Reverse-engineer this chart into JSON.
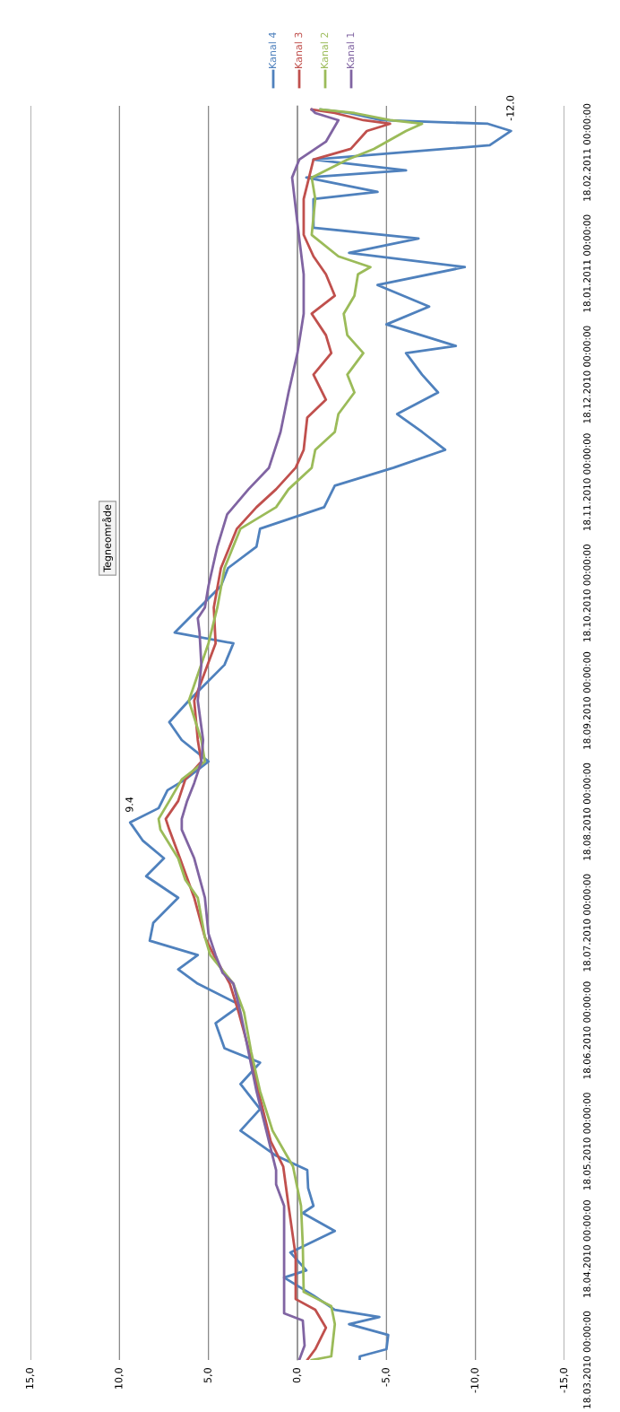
{
  "chart_data": {
    "type": "line",
    "orientation": "horizontal",
    "ylim": [
      "2010-03-18",
      "2011-03-03"
    ],
    "yticks": [
      {
        "value": "2010-03-18",
        "label": "18.03.2010 00:00:00"
      },
      {
        "value": "2010-04-18",
        "label": "18.04.2010 00:00:00"
      },
      {
        "value": "2010-05-18",
        "label": "18.05.2010 00:00:00"
      },
      {
        "value": "2010-06-18",
        "label": "18.06.2010 00:00:00"
      },
      {
        "value": "2010-07-18",
        "label": "18.07.2010 00:00:00"
      },
      {
        "value": "2010-08-18",
        "label": "18.08.2010 00:00:00"
      },
      {
        "value": "2010-09-18",
        "label": "18.09.2010 00:00:00"
      },
      {
        "value": "2010-10-18",
        "label": "18.10.2010 00:00:00"
      },
      {
        "value": "2010-11-18",
        "label": "18.11.2010 00:00:00"
      },
      {
        "value": "2010-12-18",
        "label": "18.12.2010 00:00:00"
      },
      {
        "value": "2011-01-18",
        "label": "18.01.2011 00:00:00"
      },
      {
        "value": "2011-02-18",
        "label": "18.02.2011 00:00:00"
      }
    ],
    "xlim": [
      15,
      -15
    ],
    "xticks": [
      {
        "value": -15,
        "label": "-15,0"
      },
      {
        "value": -10,
        "label": "-10,0"
      },
      {
        "value": -5,
        "label": "-5,0"
      },
      {
        "value": 0,
        "label": "0,0"
      },
      {
        "value": 5,
        "label": "5,0"
      },
      {
        "value": 10,
        "label": "10,0"
      },
      {
        "value": 15,
        "label": "15,0"
      }
    ],
    "grid": "x",
    "legend": "right",
    "marker": "none",
    "line_style": "solid",
    "annotations": [
      {
        "text": "9.4",
        "y": "2010-08-15",
        "x": 9.4
      },
      {
        "text": "-12.0",
        "y": "2011-02-24",
        "x": -12.0
      },
      "Tegneområde"
    ],
    "series": [
      {
        "name": "Kanal 4",
        "color": "#4f81bd",
        "x": [
          "2010-03-18",
          "2010-03-19",
          "2010-03-21",
          "2010-03-25",
          "2010-03-28",
          "2010-03-30",
          "2010-04-01",
          "2010-04-05",
          "2010-04-10",
          "2010-04-12",
          "2010-04-17",
          "2010-04-23",
          "2010-04-28",
          "2010-04-30",
          "2010-05-05",
          "2010-05-10",
          "2010-05-14",
          "2010-05-21",
          "2010-05-27",
          "2010-06-03",
          "2010-06-09",
          "2010-06-13",
          "2010-06-20",
          "2010-06-25",
          "2010-07-01",
          "2010-07-05",
          "2010-07-09",
          "2010-07-13",
          "2010-07-18",
          "2010-07-25",
          "2010-07-31",
          "2010-08-05",
          "2010-08-10",
          "2010-08-15",
          "2010-08-19",
          "2010-08-24",
          "2010-08-27",
          "2010-09-01",
          "2010-09-07",
          "2010-09-12",
          "2010-09-18",
          "2010-09-28",
          "2010-10-04",
          "2010-10-07",
          "2010-10-11",
          "2010-10-20",
          "2010-10-25",
          "2010-10-31",
          "2010-11-05",
          "2010-11-11",
          "2010-11-17",
          "2010-11-22",
          "2010-11-27",
          "2010-12-02",
          "2010-12-07",
          "2010-12-13",
          "2010-12-18",
          "2010-12-24",
          "2010-12-26",
          "2011-01-01",
          "2011-01-06",
          "2011-01-12",
          "2011-01-17",
          "2011-01-21",
          "2011-01-25",
          "2011-01-28",
          "2011-02-05",
          "2011-02-07",
          "2011-02-11",
          "2011-02-13",
          "2011-02-16",
          "2011-02-20",
          "2011-02-24",
          "2011-02-26",
          "2011-02-27",
          "2011-03-01",
          "2011-03-02"
        ],
        "values": [
          -3.5,
          -3.5,
          -5.0,
          -5.1,
          -2.9,
          -4.6,
          -2.1,
          -0.9,
          0.75,
          -0.5,
          0.4,
          -2.1,
          -0.3,
          -0.9,
          -0.6,
          -0.55,
          1.2,
          3.2,
          2.1,
          3.2,
          2.1,
          4.1,
          4.6,
          3.2,
          5.6,
          6.7,
          5.6,
          8.3,
          8.1,
          6.7,
          8.5,
          7.5,
          8.7,
          9.4,
          7.8,
          7.3,
          6.3,
          5.0,
          6.5,
          7.2,
          6.1,
          4.1,
          3.6,
          6.9,
          6.1,
          4.3,
          3.9,
          2.3,
          2.1,
          -1.5,
          -2.1,
          -5.4,
          -8.3,
          -7.0,
          -5.6,
          -7.9,
          -7.0,
          -6.1,
          -8.9,
          -5.0,
          -7.4,
          -4.5,
          -9.4,
          -2.9,
          -6.8,
          -0.9,
          -0.9,
          -4.5,
          -0.5,
          -6.1,
          -0.9,
          -10.8,
          -12.0,
          -10.7,
          -4.7,
          -2.9,
          -1.3
        ]
      },
      {
        "name": "Kanal 3",
        "color": "#c0504d",
        "x": [
          "2010-03-18",
          "2010-03-21",
          "2010-03-27",
          "2010-04-01",
          "2010-04-04",
          "2010-04-16",
          "2010-04-30",
          "2010-05-11",
          "2010-05-18",
          "2010-06-01",
          "2010-06-12",
          "2010-06-23",
          "2010-07-01",
          "2010-07-09",
          "2010-07-14",
          "2010-07-25",
          "2010-08-05",
          "2010-08-13",
          "2010-08-16",
          "2010-08-21",
          "2010-08-27",
          "2010-09-01",
          "2010-09-07",
          "2010-09-18",
          "2010-10-04",
          "2010-10-14",
          "2010-10-25",
          "2010-11-05",
          "2010-11-11",
          "2010-11-16",
          "2010-11-22",
          "2010-11-27",
          "2010-12-06",
          "2010-12-11",
          "2010-12-18",
          "2010-12-24",
          "2010-12-29",
          "2011-01-04",
          "2011-01-09",
          "2011-01-15",
          "2011-01-20",
          "2011-01-26",
          "2011-02-05",
          "2011-02-16",
          "2011-02-19",
          "2011-02-24",
          "2011-02-26",
          "2011-02-27",
          "2011-03-01",
          "2011-03-02"
        ],
        "values": [
          -0.55,
          -1.0,
          -1.6,
          -1.0,
          0.1,
          0.1,
          0.5,
          0.8,
          1.5,
          2.2,
          2.7,
          3.3,
          3.8,
          4.7,
          5.2,
          5.8,
          6.6,
          7.2,
          7.4,
          6.7,
          6.3,
          5.4,
          5.6,
          5.8,
          4.6,
          4.7,
          4.3,
          3.4,
          2.3,
          1.2,
          0.1,
          -0.35,
          -0.55,
          -1.6,
          -0.9,
          -1.9,
          -1.6,
          -0.8,
          -2.1,
          -1.6,
          -0.9,
          -0.35,
          -0.35,
          -0.9,
          -3.0,
          -3.9,
          -5.2,
          -3.7,
          -2.1,
          -0.8
        ]
      },
      {
        "name": "Kanal 2",
        "color": "#9bbb59",
        "x": [
          "2010-03-18",
          "2010-03-19",
          "2010-03-28",
          "2010-04-02",
          "2010-04-06",
          "2010-04-19",
          "2010-04-30",
          "2010-05-11",
          "2010-05-21",
          "2010-06-01",
          "2010-06-12",
          "2010-06-23",
          "2010-07-01",
          "2010-07-09",
          "2010-07-14",
          "2010-07-25",
          "2010-07-30",
          "2010-08-05",
          "2010-08-13",
          "2010-08-16",
          "2010-08-21",
          "2010-08-27",
          "2010-09-01",
          "2010-09-07",
          "2010-09-18",
          "2010-10-04",
          "2010-10-14",
          "2010-10-25",
          "2010-11-05",
          "2010-11-11",
          "2010-11-16",
          "2010-11-22",
          "2010-11-27",
          "2010-12-02",
          "2010-12-07",
          "2010-12-13",
          "2010-12-18",
          "2010-12-24",
          "2010-12-29",
          "2011-01-04",
          "2011-01-09",
          "2011-01-15",
          "2011-01-17",
          "2011-01-20",
          "2011-01-26",
          "2011-02-05",
          "2011-02-11",
          "2011-02-16",
          "2011-02-19",
          "2011-02-24",
          "2011-02-26",
          "2011-02-27",
          "2011-03-01",
          "2011-03-02"
        ],
        "values": [
          -0.8,
          -1.9,
          -2.1,
          -1.9,
          -0.35,
          -0.3,
          -0.2,
          0.25,
          1.4,
          2.1,
          2.6,
          3.0,
          3.6,
          4.9,
          5.2,
          5.6,
          6.3,
          6.7,
          7.7,
          7.8,
          7.2,
          6.5,
          5.2,
          5.4,
          6.1,
          5.0,
          4.5,
          4.1,
          3.2,
          1.2,
          0.5,
          -0.8,
          -1.0,
          -2.1,
          -2.3,
          -3.2,
          -2.8,
          -3.7,
          -2.8,
          -2.6,
          -3.2,
          -3.4,
          -4.1,
          -2.3,
          -0.8,
          -1.0,
          -0.8,
          -2.8,
          -4.3,
          -6.1,
          -7.0,
          -5.2,
          -3.2,
          -1.3
        ]
      },
      {
        "name": "Kanal 1",
        "color": "#8064a2",
        "x": [
          "2010-03-18",
          "2010-03-22",
          "2010-03-29",
          "2010-03-31",
          "2010-04-16",
          "2010-04-30",
          "2010-05-06",
          "2010-05-10",
          "2010-05-18",
          "2010-06-01",
          "2010-06-12",
          "2010-06-23",
          "2010-07-01",
          "2010-07-04",
          "2010-07-09",
          "2010-07-15",
          "2010-07-25",
          "2010-08-05",
          "2010-08-13",
          "2010-08-16",
          "2010-08-21",
          "2010-08-26",
          "2010-09-01",
          "2010-09-07",
          "2010-09-18",
          "2010-09-28",
          "2010-10-07",
          "2010-10-11",
          "2010-10-14",
          "2010-10-20",
          "2010-10-31",
          "2010-11-09",
          "2010-11-16",
          "2010-11-22",
          "2010-12-02",
          "2010-12-13",
          "2010-12-24",
          "2011-01-04",
          "2011-01-15",
          "2011-01-25",
          "2011-02-11",
          "2011-02-16",
          "2011-02-21",
          "2011-02-27",
          "2011-03-01",
          "2011-03-02"
        ],
        "values": [
          -0.1,
          -0.4,
          -0.3,
          0.75,
          0.75,
          0.75,
          1.2,
          1.2,
          1.6,
          2.3,
          2.75,
          3.2,
          3.6,
          4.2,
          4.6,
          5.0,
          5.2,
          5.8,
          6.5,
          6.5,
          6.2,
          5.8,
          5.4,
          5.3,
          5.6,
          5.4,
          5.5,
          5.6,
          5.2,
          5.0,
          4.5,
          3.95,
          2.75,
          1.6,
          0.95,
          0.5,
          0.0,
          -0.35,
          -0.35,
          -0.1,
          0.3,
          -0.1,
          -1.6,
          -2.3,
          -1.0,
          -0.8
        ]
      }
    ]
  }
}
